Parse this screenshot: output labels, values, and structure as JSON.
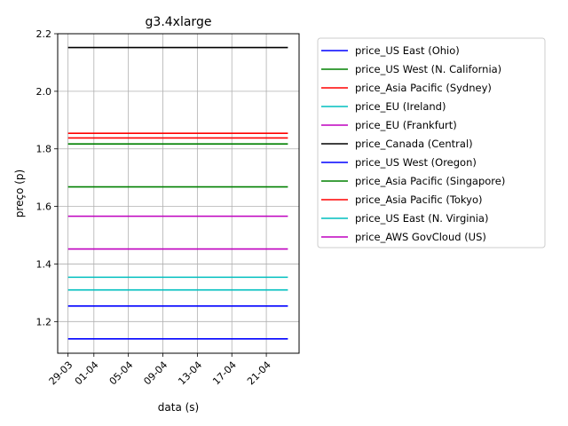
{
  "chart_data": {
    "type": "line",
    "title": "g3.4xlarge",
    "xlabel": "data (s)",
    "ylabel": "preço (p)",
    "x_ticks": [
      "29-03",
      "01-04",
      "05-04",
      "09-04",
      "13-04",
      "17-04",
      "21-04"
    ],
    "x_tick_positions_day_of_year": [
      88,
      91,
      95,
      99,
      103,
      107,
      111
    ],
    "xlim": [
      86.8,
      114.8
    ],
    "y_ticks": [
      1.2,
      1.4,
      1.6,
      1.8,
      2.0,
      2.2
    ],
    "ylim": [
      1.09,
      2.2
    ],
    "grid": true,
    "legend_position": "outside-right",
    "x": [
      88,
      113.5
    ],
    "series": [
      {
        "name": "price_US East (Ohio)",
        "color": "#0000ff",
        "values": [
          1.14,
          1.14
        ]
      },
      {
        "name": "price_US West (N. California)",
        "color": "#008000",
        "values": [
          1.817,
          1.817
        ]
      },
      {
        "name": "price_Asia Pacific (Sydney)",
        "color": "#ff0000",
        "values": [
          1.854,
          1.854
        ]
      },
      {
        "name": "price_EU (Ireland)",
        "color": "#00bfbf",
        "values": [
          1.354,
          1.354
        ]
      },
      {
        "name": "price_EU (Frankfurt)",
        "color": "#bf00bf",
        "values": [
          1.566,
          1.566
        ]
      },
      {
        "name": "price_Canada (Central)",
        "color": "#000000",
        "values": [
          2.152,
          2.152
        ]
      },
      {
        "name": "price_US West (Oregon)",
        "color": "#0000ff",
        "values": [
          1.254,
          1.254
        ]
      },
      {
        "name": "price_Asia Pacific (Singapore)",
        "color": "#008000",
        "values": [
          1.668,
          1.668
        ]
      },
      {
        "name": "price_Asia Pacific (Tokyo)",
        "color": "#ff0000",
        "values": [
          1.838,
          1.838
        ]
      },
      {
        "name": "price_US East (N. Virginia)",
        "color": "#00bfbf",
        "values": [
          1.31,
          1.31
        ]
      },
      {
        "name": "price_AWS GovCloud (US)",
        "color": "#bf00bf",
        "values": [
          1.452,
          1.452
        ]
      }
    ]
  }
}
